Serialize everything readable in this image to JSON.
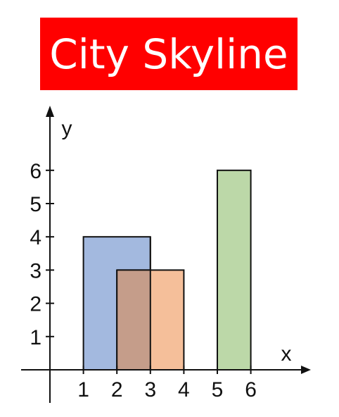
{
  "title": "City Skyline",
  "colors": {
    "title_bg": "#ff0000",
    "title_text": "#ffffff",
    "bar1": "#a3b9df",
    "bar2": "#f5bf9a",
    "overlap": "#c59d8a",
    "bar3": "#bcd8a8",
    "outline": "#111111"
  },
  "chart_data": {
    "type": "bar",
    "title": "City Skyline",
    "xlabel": "x",
    "ylabel": "y",
    "xlim": [
      0,
      7
    ],
    "ylim": [
      0,
      7
    ],
    "x_ticks": [
      "1",
      "2",
      "3",
      "4",
      "5",
      "6"
    ],
    "y_ticks": [
      "1",
      "2",
      "3",
      "4",
      "5",
      "6"
    ],
    "bars": [
      {
        "x_start": 1,
        "x_end": 3,
        "height": 4,
        "color": "#a3b9df"
      },
      {
        "x_start": 2,
        "x_end": 4,
        "height": 3,
        "color": "#f5bf9a"
      },
      {
        "x_start": 5,
        "x_end": 6,
        "height": 6,
        "color": "#bcd8a8"
      }
    ],
    "overlap": {
      "x_start": 2,
      "x_end": 3,
      "height": 3,
      "color": "#c59d8a"
    },
    "grid": false
  }
}
